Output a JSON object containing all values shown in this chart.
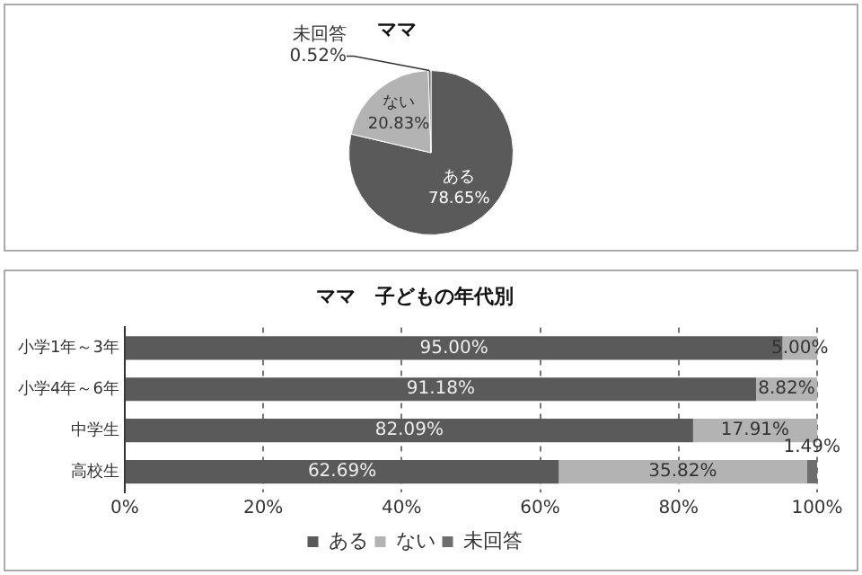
{
  "chart_data": [
    {
      "type": "pie",
      "title": "ママ",
      "categories": [
        "ある",
        "ない",
        "未回答"
      ],
      "values": [
        78.65,
        20.83,
        0.52
      ],
      "colors": [
        "#5a5a5a",
        "#b3b3b3",
        "#6e6e6e"
      ],
      "value_labels": [
        "78.65%",
        "20.83%",
        "0.52%"
      ],
      "legend": false
    },
    {
      "type": "bar",
      "orientation": "horizontal",
      "stacked": true,
      "title": "ママ　子どもの年代別",
      "categories": [
        "小学1年～3年",
        "小学4年～6年",
        "中学生",
        "高校生"
      ],
      "series": [
        {
          "name": "ある",
          "color": "#5a5a5a",
          "values": [
            95.0,
            91.18,
            82.09,
            62.69
          ],
          "value_labels": [
            "95.00%",
            "91.18%",
            "82.09%",
            "62.69%"
          ]
        },
        {
          "name": "ない",
          "color": "#b3b3b3",
          "values": [
            5.0,
            8.82,
            17.91,
            35.82
          ],
          "value_labels": [
            "5.00%",
            "8.82%",
            "17.91%",
            "35.82%"
          ]
        },
        {
          "name": "未回答",
          "color": "#6e6e6e",
          "values": [
            0,
            0,
            0,
            1.49
          ],
          "value_labels": [
            null,
            null,
            null,
            "1.49%"
          ]
        }
      ],
      "xlim": [
        0,
        100
      ],
      "xticks": [
        {
          "value": 0,
          "label": "0%"
        },
        {
          "value": 20,
          "label": "20%"
        },
        {
          "value": 40,
          "label": "40%"
        },
        {
          "value": 60,
          "label": "60%"
        },
        {
          "value": 80,
          "label": "80%"
        },
        {
          "value": 100,
          "label": "100%"
        }
      ],
      "grid": "x",
      "legend": "bottom"
    }
  ]
}
